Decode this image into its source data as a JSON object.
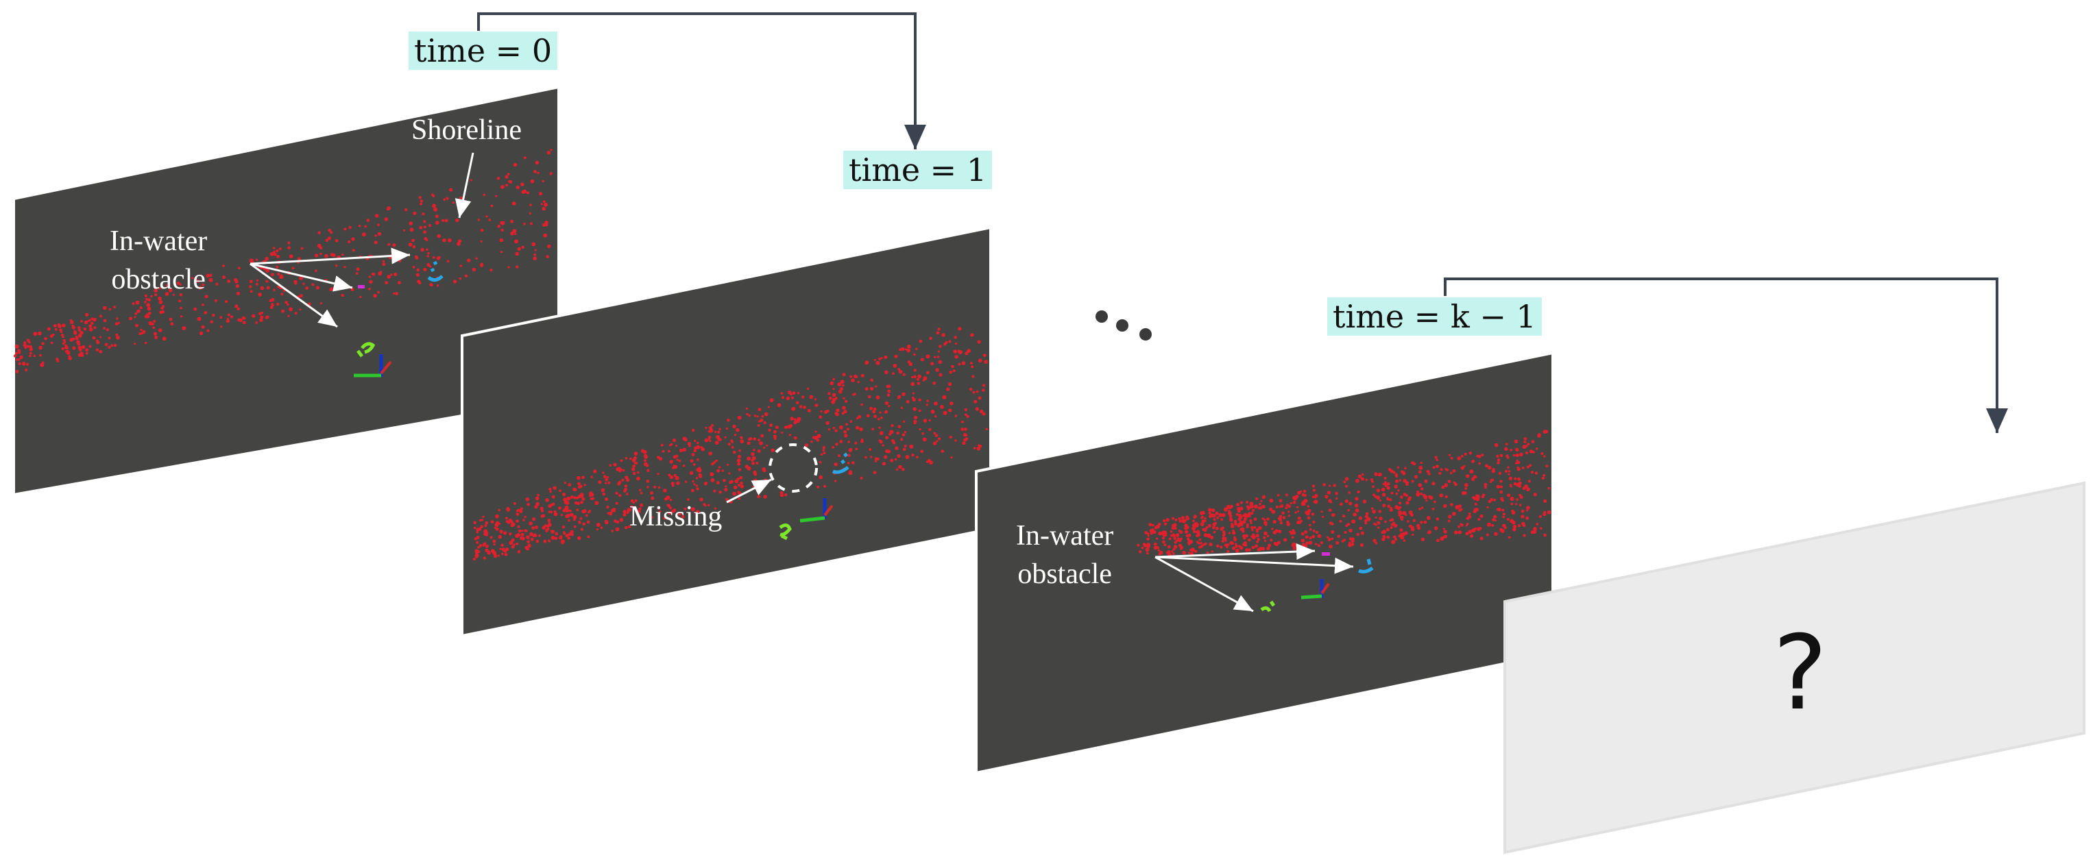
{
  "colors": {
    "frame": "#444443",
    "frame_border": "#ffffff",
    "empty_frame": "#ebebeb",
    "empty_frame_border": "#e0e0e0",
    "label_background": "#c5f3ee",
    "connector": "#3b4250",
    "shoreline_points": "#e0202c",
    "obstacle_green": "#7fe52a",
    "obstacle_cyan": "#2aa7e8",
    "obstacle_magenta": "#d62dd6",
    "axis_blue": "#1633c8",
    "axis_green": "#2ec82e",
    "axis_red": "#d22a2a",
    "annotation_text": "#ffffff"
  },
  "frames": [
    {
      "time_label": "time = 0",
      "annotations": {
        "shoreline": "Shoreline",
        "obstacle": "In-water\nobstacle"
      }
    },
    {
      "time_label": "time = 1",
      "annotations": {
        "missing": "Missing"
      }
    },
    {
      "time_label": "time = k − 1",
      "annotations": {
        "obstacle": "In-water\nobstacle"
      }
    },
    {
      "placeholder": "?"
    }
  ],
  "ellipsis": "• •   •",
  "icons": [
    "arrow-icon",
    "dashed-circle-icon",
    "ellipsis-icon"
  ]
}
